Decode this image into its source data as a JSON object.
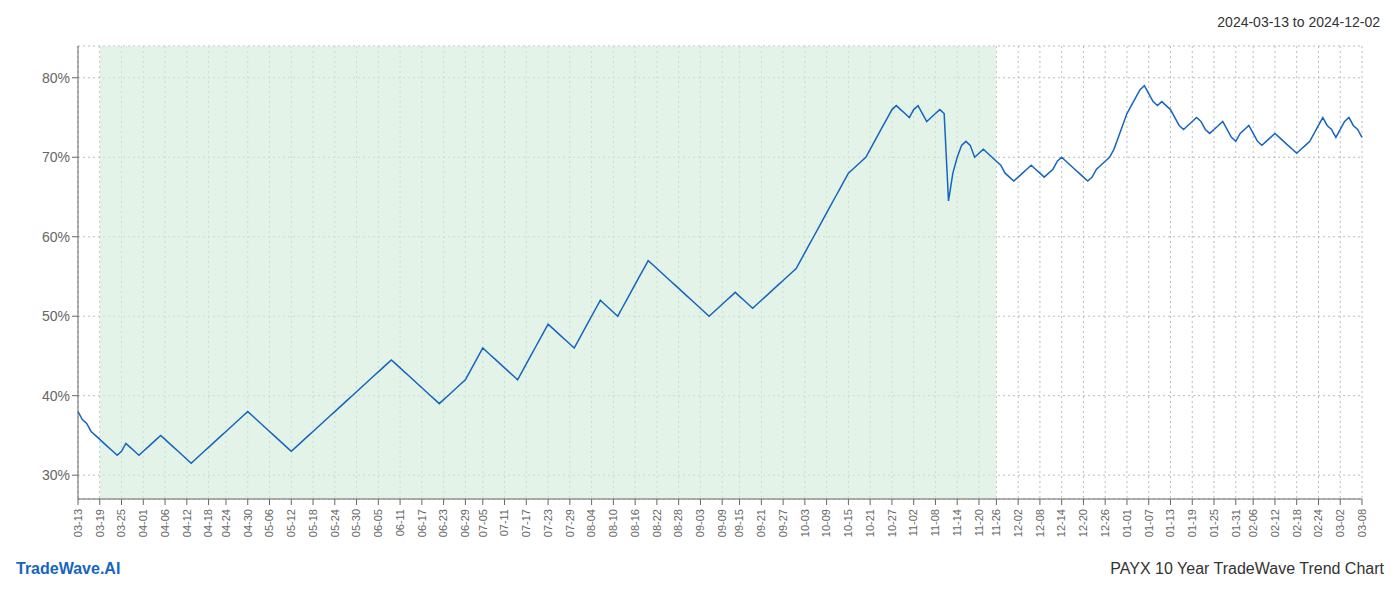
{
  "chart_data": {
    "type": "line",
    "title": "2024-03-13 to 2024-12-02",
    "annotations": [
      {
        "text": "TradeWave.AI",
        "color": "#1565c0"
      },
      {
        "text": "PAYX 10 Year TradeWave Trend Chart",
        "color": "#333333"
      }
    ],
    "color": "#1565c0",
    "grid": true,
    "grid_color": "#bbbbbb",
    "shade": {
      "from": "03-19",
      "to": "11-26",
      "color": "#d4edda"
    },
    "ylim": [
      27,
      84
    ],
    "yticks": [
      {
        "value": 30,
        "label": "30%"
      },
      {
        "value": 40,
        "label": "40%"
      },
      {
        "value": 50,
        "label": "50%"
      },
      {
        "value": 60,
        "label": "60%"
      },
      {
        "value": 70,
        "label": "70%"
      },
      {
        "value": 80,
        "label": "80%"
      }
    ],
    "categories": [
      "03-13",
      null,
      null,
      null,
      null,
      "03-19",
      null,
      null,
      null,
      null,
      "03-25",
      null,
      null,
      null,
      null,
      "04-01",
      null,
      null,
      null,
      null,
      "04-06",
      null,
      null,
      null,
      null,
      "04-12",
      null,
      null,
      null,
      null,
      "04-18",
      null,
      null,
      null,
      "04-24",
      null,
      null,
      null,
      null,
      "04-30",
      null,
      null,
      null,
      null,
      "05-06",
      null,
      null,
      null,
      null,
      "05-12",
      null,
      null,
      null,
      null,
      "05-18",
      null,
      null,
      null,
      null,
      "05-24",
      null,
      null,
      null,
      null,
      "05-30",
      null,
      null,
      null,
      null,
      "06-05",
      null,
      null,
      null,
      null,
      "06-11",
      null,
      null,
      null,
      null,
      "06-17",
      null,
      null,
      null,
      null,
      "06-23",
      null,
      null,
      null,
      null,
      "06-29",
      null,
      null,
      null,
      "07-05",
      null,
      null,
      null,
      null,
      "07-11",
      null,
      null,
      null,
      null,
      "07-17",
      null,
      null,
      null,
      null,
      "07-23",
      null,
      null,
      null,
      null,
      "07-29",
      null,
      null,
      null,
      null,
      "08-04",
      null,
      null,
      null,
      null,
      "08-10",
      null,
      null,
      null,
      null,
      "08-16",
      null,
      null,
      null,
      null,
      "08-22",
      null,
      null,
      null,
      null,
      "08-28",
      null,
      null,
      null,
      null,
      "09-03",
      null,
      null,
      null,
      null,
      "09-09",
      null,
      null,
      null,
      "09-15",
      null,
      null,
      null,
      null,
      "09-21",
      null,
      null,
      null,
      null,
      "09-27",
      null,
      null,
      null,
      null,
      "10-03",
      null,
      null,
      null,
      null,
      "10-09",
      null,
      null,
      null,
      null,
      "10-15",
      null,
      null,
      null,
      null,
      "10-21",
      null,
      null,
      null,
      null,
      "10-27",
      null,
      null,
      null,
      null,
      "11-02",
      null,
      null,
      null,
      null,
      "11-08",
      null,
      null,
      null,
      null,
      "11-14",
      null,
      null,
      null,
      null,
      "11-20",
      null,
      null,
      null,
      "11-26",
      null,
      null,
      null,
      null,
      "12-02",
      null,
      null,
      null,
      null,
      "12-08",
      null,
      null,
      null,
      null,
      "12-14",
      null,
      null,
      null,
      null,
      "12-20",
      null,
      null,
      null,
      null,
      "12-26",
      null,
      null,
      null,
      null,
      "01-01",
      null,
      null,
      null,
      null,
      "01-07",
      null,
      null,
      null,
      null,
      "01-13",
      null,
      null,
      null,
      null,
      "01-19",
      null,
      null,
      null,
      null,
      "01-25",
      null,
      null,
      null,
      null,
      "01-31",
      null,
      null,
      null,
      "02-06",
      null,
      null,
      null,
      null,
      "02-12",
      null,
      null,
      null,
      null,
      "02-18",
      null,
      null,
      null,
      null,
      "02-24",
      null,
      null,
      null,
      null,
      "03-02",
      null,
      null,
      null,
      null,
      "03-08"
    ],
    "values": [
      38.0,
      37.0,
      36.5,
      35.5,
      35.0,
      34.5,
      34.0,
      33.5,
      33.0,
      32.5,
      33.0,
      34.0,
      33.5,
      33.0,
      32.5,
      33.0,
      33.5,
      34.0,
      34.5,
      35.0,
      34.5,
      34.0,
      33.5,
      33.0,
      32.5,
      32.0,
      31.5,
      32.0,
      32.5,
      33.0,
      33.5,
      34.0,
      34.5,
      35.0,
      35.5,
      36.0,
      36.5,
      37.0,
      37.5,
      38.0,
      37.5,
      37.0,
      36.5,
      36.0,
      35.5,
      35.0,
      34.5,
      34.0,
      33.5,
      33.0,
      33.5,
      34.0,
      34.5,
      35.0,
      35.5,
      36.0,
      36.5,
      37.0,
      37.5,
      38.0,
      38.5,
      39.0,
      39.5,
      40.0,
      40.5,
      41.0,
      41.5,
      42.0,
      42.5,
      43.0,
      43.5,
      44.0,
      44.5,
      44.0,
      43.5,
      43.0,
      42.5,
      42.0,
      41.5,
      41.0,
      40.5,
      40.0,
      39.5,
      39.0,
      39.5,
      40.0,
      40.5,
      41.0,
      41.5,
      42.0,
      43.0,
      44.0,
      45.0,
      46.0,
      45.5,
      45.0,
      44.5,
      44.0,
      43.5,
      43.0,
      42.5,
      42.0,
      43.0,
      44.0,
      45.0,
      46.0,
      47.0,
      48.0,
      49.0,
      48.5,
      48.0,
      47.5,
      47.0,
      46.5,
      46.0,
      47.0,
      48.0,
      49.0,
      50.0,
      51.0,
      52.0,
      51.5,
      51.0,
      50.5,
      50.0,
      51.0,
      52.0,
      53.0,
      54.0,
      55.0,
      56.0,
      57.0,
      56.5,
      56.0,
      55.5,
      55.0,
      54.5,
      54.0,
      53.5,
      53.0,
      52.5,
      52.0,
      51.5,
      51.0,
      50.5,
      50.0,
      50.5,
      51.0,
      51.5,
      52.0,
      52.5,
      53.0,
      52.5,
      52.0,
      51.5,
      51.0,
      51.5,
      52.0,
      52.5,
      53.0,
      53.5,
      54.0,
      54.5,
      55.0,
      55.5,
      56.0,
      57.0,
      58.0,
      59.0,
      60.0,
      61.0,
      62.0,
      63.0,
      64.0,
      65.0,
      66.0,
      67.0,
      68.0,
      68.5,
      69.0,
      69.5,
      70.0,
      71.0,
      72.0,
      73.0,
      74.0,
      75.0,
      76.0,
      76.5,
      76.0,
      75.5,
      75.0,
      76.0,
      76.5,
      75.5,
      74.5,
      75.0,
      75.5,
      76.0,
      75.5,
      64.5,
      68.0,
      70.0,
      71.5,
      72.0,
      71.5,
      70.0,
      70.5,
      71.0,
      70.5,
      70.0,
      69.5,
      69.0,
      68.0,
      67.5,
      67.0,
      67.5,
      68.0,
      68.5,
      69.0,
      68.5,
      68.0,
      67.5,
      68.0,
      68.5,
      69.5,
      70.0,
      69.5,
      69.0,
      68.5,
      68.0,
      67.5,
      67.0,
      67.5,
      68.5,
      69.0,
      69.5,
      70.0,
      71.0,
      72.5,
      74.0,
      75.5,
      76.5,
      77.5,
      78.5,
      79.0,
      78.0,
      77.0,
      76.5,
      77.0,
      76.5,
      76.0,
      75.0,
      74.0,
      73.5,
      74.0,
      74.5,
      75.0,
      74.5,
      73.5,
      73.0,
      73.5,
      74.0,
      74.5,
      73.5,
      72.5,
      72.0,
      73.0,
      73.5,
      74.0,
      73.0,
      72.0,
      71.5,
      72.0,
      72.5,
      73.0,
      72.5,
      72.0,
      71.5,
      71.0,
      70.5,
      71.0,
      71.5,
      72.0,
      73.0,
      74.0,
      75.0,
      74.0,
      73.5,
      72.5,
      73.5,
      74.5,
      75.0,
      74.0,
      73.5,
      72.5
    ]
  }
}
